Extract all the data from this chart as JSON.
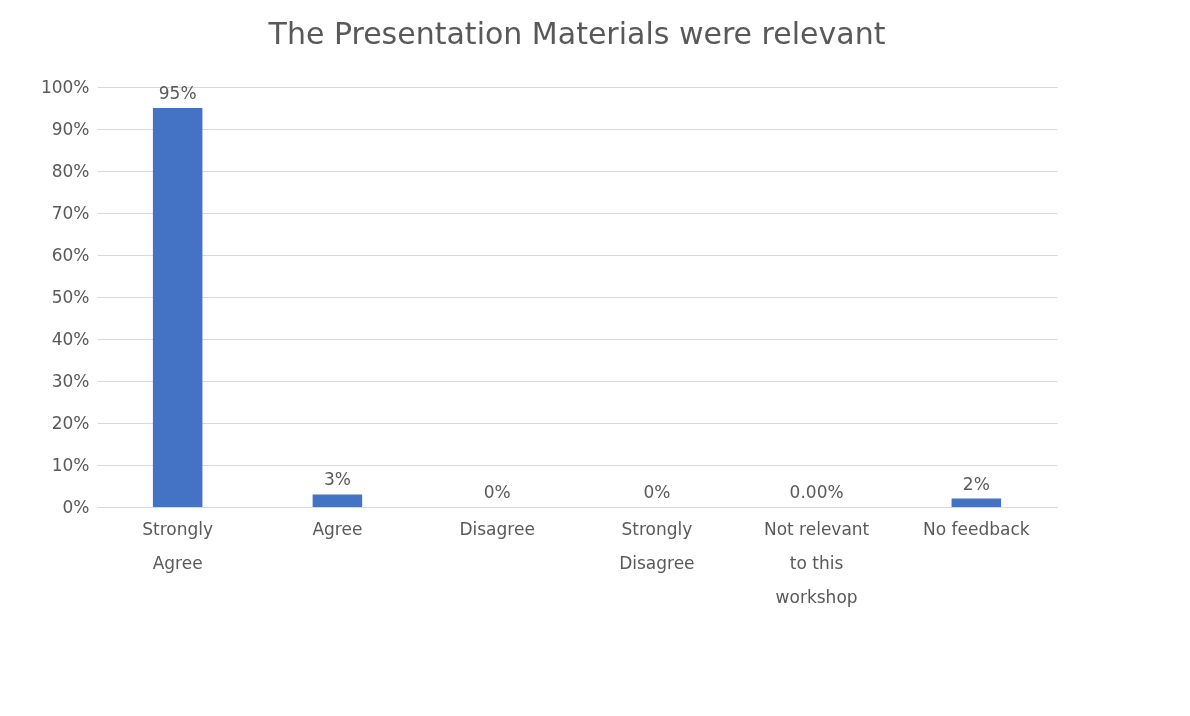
{
  "chart_data": {
    "type": "bar",
    "title": "The Presentation Materials were relevant",
    "categories": [
      "Strongly Agree",
      "Agree",
      "Disagree",
      "Strongly Disagree",
      "Not relevant to this workshop",
      "No feedback"
    ],
    "values": [
      95,
      3,
      0,
      0,
      0,
      2
    ],
    "value_labels": [
      "95%",
      "3%",
      "0%",
      "0%",
      "0.00%",
      "2%"
    ],
    "color": "#4472c4",
    "ylim": [
      0,
      100
    ],
    "yticks": [
      {
        "value": 0,
        "label": "0%"
      },
      {
        "value": 10,
        "label": "10%"
      },
      {
        "value": 20,
        "label": "20%"
      },
      {
        "value": 30,
        "label": "30%"
      },
      {
        "value": 40,
        "label": "40%"
      },
      {
        "value": 50,
        "label": "50%"
      },
      {
        "value": 60,
        "label": "60%"
      },
      {
        "value": 70,
        "label": "70%"
      },
      {
        "value": 80,
        "label": "80%"
      },
      {
        "value": 90,
        "label": "90%"
      },
      {
        "value": 100,
        "label": "100%"
      }
    ],
    "grid": "y"
  }
}
